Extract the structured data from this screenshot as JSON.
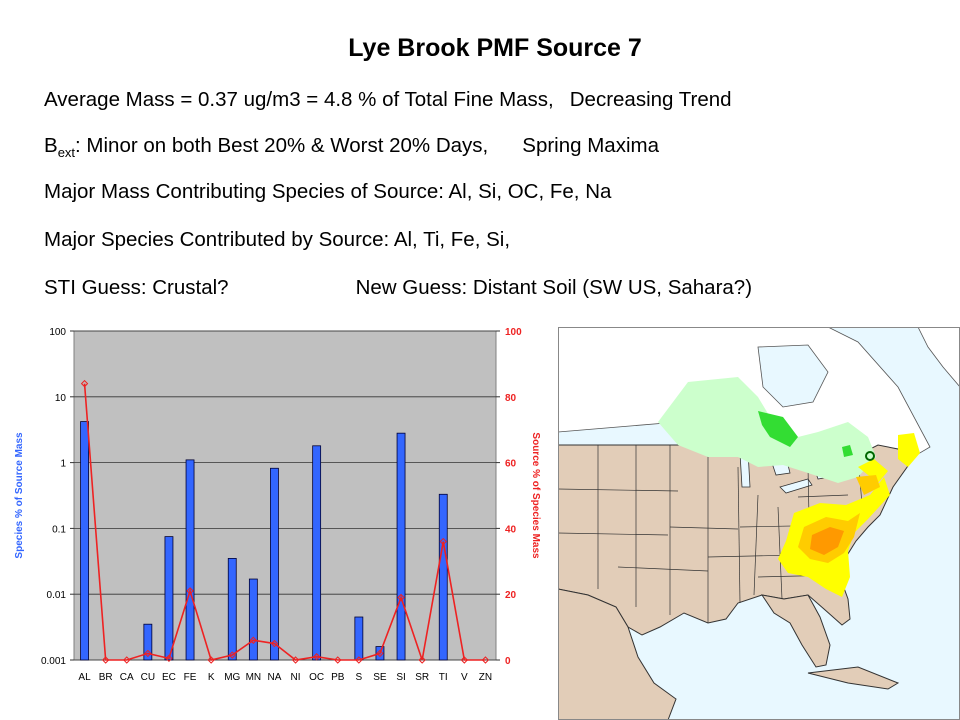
{
  "slide": {
    "title": "Lye Brook PMF Source 7",
    "line1_a": "Average Mass = 0.37 ug/m3 = 4.8 % of Total Fine Mass,",
    "line1_b": "Decreasing Trend",
    "line2_b_main": "B",
    "line2_b_sub": "ext",
    "line2_a": ": Minor on both Best 20% & Worst 20% Days,",
    "line2_c": "Spring Maxima",
    "line3": "Major Mass Contributing Species of Source: Al, Si, OC, Fe, Na",
    "line4": "Major Species Contributed by Source: Al, Ti, Fe, Si,",
    "line5_a": "STI Guess: Crustal?",
    "line5_b": "New Guess: Distant Soil (SW US, Sahara?)"
  },
  "chart_data": {
    "type": "bar",
    "categories": [
      "AL",
      "BR",
      "CA",
      "CU",
      "EC",
      "FE",
      "K",
      "MG",
      "MN",
      "NA",
      "NI",
      "OC",
      "PB",
      "S",
      "SE",
      "SI",
      "SR",
      "TI",
      "V",
      "ZN"
    ],
    "series": [
      {
        "values": [
          4.2,
          null,
          null,
          0.0035,
          0.075,
          1.1,
          null,
          0.035,
          0.017,
          0.82,
          null,
          1.8,
          null,
          0.0045,
          0.0016,
          2.8,
          null,
          0.33,
          null,
          null
        ],
        "axis": "left",
        "color": "#3366ff",
        "kind": "bar"
      },
      {
        "values": [
          84,
          0,
          0,
          2,
          0.5,
          21,
          0,
          1.5,
          6,
          5,
          0,
          1,
          0,
          0,
          2,
          19,
          0,
          36,
          0,
          0
        ],
        "axis": "right",
        "color": "#ee2222",
        "kind": "line"
      }
    ],
    "ylabel_left": "Species % of Source Mass",
    "ylabel_right": "Source % of Species Mass",
    "yscale_left": "log",
    "ylim_left": [
      0.001,
      100
    ],
    "yticks_left": [
      "0.001",
      "0.01",
      "0.1",
      "1",
      "10",
      "100"
    ],
    "ylim_right": [
      0,
      100
    ],
    "yticks_right": [
      "0",
      "20",
      "40",
      "60",
      "80",
      "100"
    ],
    "plot_background": "#c0c0c0",
    "grid": true
  },
  "map": {
    "type": "geographic map",
    "region": "eastern North America",
    "colors": {
      "water": "#e8f8ff",
      "land": "#e2cdb8",
      "low": "#ccffcc",
      "med": "#33dd33",
      "high": "#ffff00",
      "higher": "#ffcc00",
      "highest": "#ff9900",
      "site": "#006600"
    }
  }
}
